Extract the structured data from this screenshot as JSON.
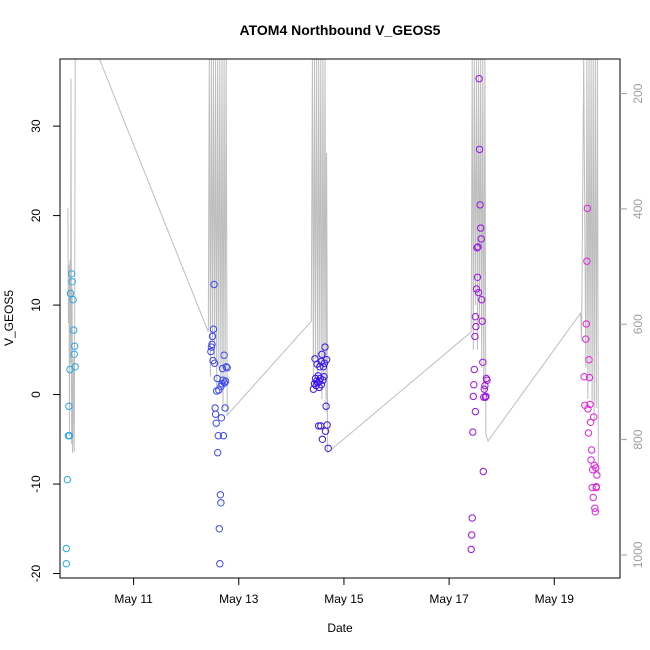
{
  "chart_data": {
    "type": "scatter",
    "title": "ATOM4 Northbound V_GEOS5",
    "xlabel": "Date",
    "ylabel": "V_GEOS5",
    "x_unit": "day of May",
    "xlim": [
      9.6,
      20.25
    ],
    "ylim": [
      -20.5,
      37.5
    ],
    "x_ticks": [
      11,
      13,
      15,
      17,
      19
    ],
    "x_tick_labels": [
      "May 11",
      "May 13",
      "May 15",
      "May 17",
      "May 19"
    ],
    "y_ticks": [
      -20,
      -10,
      0,
      10,
      20,
      30
    ],
    "y_tick_labels": [
      "-20",
      "-10",
      "0",
      "10",
      "20",
      "30"
    ],
    "y2_lim": [
      1040,
      140
    ],
    "y2_ticks": [
      200,
      400,
      600,
      800,
      1000
    ],
    "y2_tick_labels": [
      "200",
      "400",
      "600",
      "800",
      "1000"
    ],
    "grid": false,
    "colors": {
      "pressure_line": "#bdbdbd",
      "flights": [
        "#29a8e8",
        "#3b48ee",
        "#3a14ee",
        "#9b12e8",
        "#e223e0"
      ]
    },
    "series": [
      {
        "points": [
          [
            9.72,
            -17.2
          ],
          [
            9.72,
            -18.9
          ],
          [
            9.74,
            -9.5
          ],
          [
            9.76,
            -4.6
          ],
          [
            9.78,
            -4.6
          ],
          [
            9.77,
            -1.3
          ],
          [
            9.79,
            2.8
          ],
          [
            9.8,
            11.3
          ],
          [
            9.82,
            13.5
          ],
          [
            9.83,
            12.6
          ],
          [
            9.85,
            10.6
          ],
          [
            9.86,
            7.2
          ],
          [
            9.87,
            4.5
          ],
          [
            9.88,
            5.4
          ],
          [
            9.89,
            3.1
          ]
        ]
      },
      {
        "points": [
          [
            12.47,
            4.8
          ],
          [
            12.48,
            5.3
          ],
          [
            12.49,
            5.6
          ],
          [
            12.5,
            6.5
          ],
          [
            12.51,
            3.8
          ],
          [
            12.52,
            7.3
          ],
          [
            12.53,
            12.3
          ],
          [
            12.54,
            3.5
          ],
          [
            12.55,
            -1.5
          ],
          [
            12.56,
            -2.2
          ],
          [
            12.57,
            -3.2
          ],
          [
            12.58,
            0.4
          ],
          [
            12.59,
            1.8
          ],
          [
            12.6,
            -6.5
          ],
          [
            12.61,
            -4.6
          ],
          [
            12.62,
            0.5
          ],
          [
            12.63,
            -15.0
          ],
          [
            12.64,
            -18.9
          ],
          [
            12.65,
            -11.2
          ],
          [
            12.66,
            -12.1
          ],
          [
            12.67,
            -2.6
          ],
          [
            12.69,
            2.9
          ],
          [
            12.7,
            1.6
          ],
          [
            12.71,
            -4.6
          ],
          [
            12.72,
            4.4
          ],
          [
            12.73,
            1.3
          ],
          [
            12.74,
            -1.5
          ],
          [
            12.75,
            1.5
          ],
          [
            12.76,
            3.1
          ],
          [
            12.78,
            3.0
          ],
          [
            12.66,
            0.9
          ],
          [
            12.68,
            1.2
          ]
        ]
      },
      {
        "points": [
          [
            14.42,
            0.6
          ],
          [
            14.44,
            1.2
          ],
          [
            14.45,
            4.0
          ],
          [
            14.46,
            1.8
          ],
          [
            14.47,
            1.0
          ],
          [
            14.48,
            1.5
          ],
          [
            14.49,
            3.4
          ],
          [
            14.5,
            1.3
          ],
          [
            14.51,
            2.1
          ],
          [
            14.52,
            -3.5
          ],
          [
            14.53,
            1.5
          ],
          [
            14.54,
            3.1
          ],
          [
            14.55,
            1.8
          ],
          [
            14.56,
            -3.5
          ],
          [
            14.57,
            3.7
          ],
          [
            14.58,
            4.5
          ],
          [
            14.59,
            -5.0
          ],
          [
            14.6,
            1.6
          ],
          [
            14.61,
            3.1
          ],
          [
            14.62,
            2.0
          ],
          [
            14.63,
            3.5
          ],
          [
            14.64,
            5.3
          ],
          [
            14.65,
            -4.1
          ],
          [
            14.66,
            -1.3
          ],
          [
            14.67,
            3.9
          ],
          [
            14.68,
            -3.4
          ],
          [
            14.7,
            -6.0
          ],
          [
            14.53,
            0.8
          ],
          [
            14.57,
            1.1
          ]
        ]
      },
      {
        "points": [
          [
            17.42,
            -17.3
          ],
          [
            17.43,
            -15.7
          ],
          [
            17.44,
            -13.8
          ],
          [
            17.45,
            -4.2
          ],
          [
            17.46,
            -0.2
          ],
          [
            17.47,
            1.1
          ],
          [
            17.48,
            2.8
          ],
          [
            17.49,
            6.5
          ],
          [
            17.5,
            8.7
          ],
          [
            17.51,
            7.6
          ],
          [
            17.52,
            11.8
          ],
          [
            17.53,
            16.4
          ],
          [
            17.54,
            13.1
          ],
          [
            17.55,
            16.5
          ],
          [
            17.56,
            11.4
          ],
          [
            17.57,
            35.3
          ],
          [
            17.58,
            27.4
          ],
          [
            17.59,
            21.2
          ],
          [
            17.6,
            18.6
          ],
          [
            17.61,
            17.4
          ],
          [
            17.62,
            10.6
          ],
          [
            17.63,
            8.2
          ],
          [
            17.64,
            3.6
          ],
          [
            17.65,
            -8.6
          ],
          [
            17.66,
            -0.3
          ],
          [
            17.67,
            0.6
          ],
          [
            17.68,
            1.0
          ],
          [
            17.69,
            -0.3
          ],
          [
            17.7,
            -0.2
          ],
          [
            17.71,
            1.8
          ],
          [
            17.72,
            1.6
          ],
          [
            17.5,
            -1.9
          ]
        ]
      },
      {
        "points": [
          [
            19.57,
            2.0
          ],
          [
            19.58,
            -1.2
          ],
          [
            19.6,
            6.2
          ],
          [
            19.61,
            7.9
          ],
          [
            19.62,
            14.9
          ],
          [
            19.63,
            20.8
          ],
          [
            19.64,
            -1.6
          ],
          [
            19.65,
            -4.3
          ],
          [
            19.66,
            3.9
          ],
          [
            19.67,
            1.9
          ],
          [
            19.68,
            -1.1
          ],
          [
            19.69,
            -3.1
          ],
          [
            19.7,
            -7.3
          ],
          [
            19.71,
            -6.2
          ],
          [
            19.72,
            -10.4
          ],
          [
            19.73,
            -8.4
          ],
          [
            19.74,
            -11.5
          ],
          [
            19.75,
            -2.5
          ],
          [
            19.76,
            -7.9
          ],
          [
            19.77,
            -12.7
          ],
          [
            19.78,
            -13.1
          ],
          [
            19.79,
            -8.2
          ],
          [
            19.8,
            -10.3
          ],
          [
            19.81,
            -9.0
          ],
          [
            19.8,
            -10.4
          ]
        ]
      }
    ],
    "pressure_line": [
      [
        9.75,
        20.8
      ],
      [
        9.76,
        8.0
      ],
      [
        9.77,
        14.5
      ],
      [
        9.78,
        -4.6
      ],
      [
        9.79,
        15.0
      ],
      [
        9.8,
        3.5
      ],
      [
        9.81,
        35.3
      ],
      [
        9.82,
        -5.5
      ],
      [
        9.83,
        12.0
      ],
      [
        9.84,
        -6.5
      ],
      [
        9.86,
        4.0
      ],
      [
        9.87,
        -6.4
      ],
      [
        9.88,
        10.0
      ],
      [
        9.89,
        37.5
      ],
      [
        10.35,
        37.5
      ],
      [
        12.42,
        7.0
      ],
      [
        12.44,
        37.5
      ],
      [
        12.46,
        2.0
      ],
      [
        12.48,
        37.5
      ],
      [
        12.5,
        6.0
      ],
      [
        12.52,
        37.5
      ],
      [
        12.54,
        4.0
      ],
      [
        12.56,
        37.5
      ],
      [
        12.58,
        0.5
      ],
      [
        12.6,
        37.5
      ],
      [
        12.62,
        3.0
      ],
      [
        12.64,
        37.5
      ],
      [
        12.66,
        1.0
      ],
      [
        12.68,
        37.5
      ],
      [
        12.7,
        -1.5
      ],
      [
        12.72,
        37.5
      ],
      [
        12.74,
        2.0
      ],
      [
        12.76,
        37.5
      ],
      [
        12.78,
        -2.3
      ],
      [
        14.38,
        8.2
      ],
      [
        14.4,
        37.5
      ],
      [
        14.42,
        2.0
      ],
      [
        14.44,
        37.5
      ],
      [
        14.46,
        4.0
      ],
      [
        14.48,
        37.5
      ],
      [
        14.5,
        1.0
      ],
      [
        14.52,
        37.5
      ],
      [
        14.54,
        3.5
      ],
      [
        14.56,
        37.5
      ],
      [
        14.58,
        -0.5
      ],
      [
        14.6,
        37.5
      ],
      [
        14.62,
        2.0
      ],
      [
        14.64,
        37.5
      ],
      [
        14.66,
        -2.0
      ],
      [
        14.67,
        27.0
      ],
      [
        14.69,
        -6.5
      ],
      [
        17.42,
        7.0
      ],
      [
        17.44,
        37.5
      ],
      [
        17.46,
        5.0
      ],
      [
        17.48,
        37.5
      ],
      [
        17.5,
        10.0
      ],
      [
        17.52,
        37.5
      ],
      [
        17.54,
        5.0
      ],
      [
        17.56,
        37.5
      ],
      [
        17.58,
        8.0
      ],
      [
        17.6,
        37.5
      ],
      [
        17.62,
        3.0
      ],
      [
        17.64,
        37.5
      ],
      [
        17.66,
        -0.5
      ],
      [
        17.68,
        37.5
      ],
      [
        17.7,
        -4.5
      ],
      [
        17.74,
        -5.2
      ],
      [
        19.5,
        9.1
      ],
      [
        19.52,
        6.0
      ],
      [
        19.56,
        37.5
      ],
      [
        19.6,
        3.0
      ],
      [
        19.62,
        37.5
      ],
      [
        19.64,
        -0.5
      ],
      [
        19.66,
        37.5
      ],
      [
        19.68,
        1.5
      ],
      [
        19.7,
        37.5
      ],
      [
        19.72,
        -1.0
      ],
      [
        19.74,
        37.5
      ],
      [
        19.76,
        -3.0
      ],
      [
        19.78,
        37.5
      ],
      [
        19.8,
        -1.5
      ],
      [
        19.82,
        37.5
      ],
      [
        19.84,
        -9.0
      ]
    ]
  }
}
